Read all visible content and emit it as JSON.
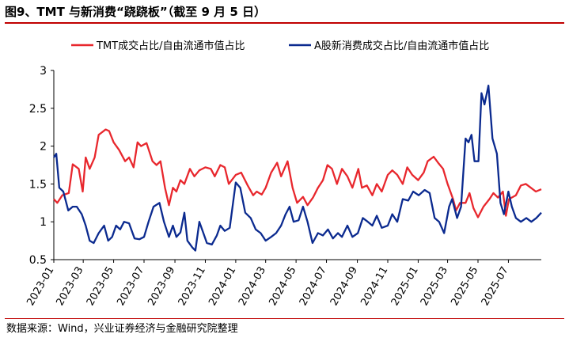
{
  "header": {
    "title": "图9、TMT 与新消费“跷跷板”（截至 9 月 5 日）"
  },
  "footer": {
    "source": "数据来源：Wind，兴业证券经济与金融研究院整理"
  },
  "colors": {
    "tmt": "#e8272d",
    "consumer": "#0b2a8f",
    "rule": "#c00000"
  },
  "chart_data": {
    "type": "line",
    "title": "",
    "xlabel": "",
    "ylabel": "",
    "ylim": [
      0.5,
      3
    ],
    "yticks": [
      "0.5",
      "1",
      "1.5",
      "2",
      "2.5",
      "3"
    ],
    "grid": false,
    "legend": "top",
    "xlim": [
      "2023-01-01",
      "2025-09-05"
    ],
    "xticks": [
      "2023-01",
      "2023-03",
      "2023-05",
      "2023-07",
      "2023-09",
      "2023-11",
      "2024-01",
      "2024-03",
      "2024-05",
      "2024-07",
      "2024-09",
      "2024-11",
      "2025-01",
      "2025-03",
      "2025-05",
      "2025-07"
    ],
    "series": [
      {
        "name": "TMT成交占比/自由流通市值占比",
        "color": "#e8272d",
        "points": [
          [
            "2023-01-01",
            1.3
          ],
          [
            "2023-01-08",
            1.25
          ],
          [
            "2023-01-18",
            1.35
          ],
          [
            "2023-01-31",
            1.38
          ],
          [
            "2023-02-08",
            1.76
          ],
          [
            "2023-02-20",
            1.7
          ],
          [
            "2023-02-28",
            1.4
          ],
          [
            "2023-03-06",
            1.85
          ],
          [
            "2023-03-14",
            1.7
          ],
          [
            "2023-03-24",
            1.85
          ],
          [
            "2023-04-01",
            2.15
          ],
          [
            "2023-04-15",
            2.22
          ],
          [
            "2023-04-22",
            2.2
          ],
          [
            "2023-05-01",
            2.05
          ],
          [
            "2023-05-12",
            1.95
          ],
          [
            "2023-05-24",
            1.8
          ],
          [
            "2023-06-01",
            1.85
          ],
          [
            "2023-06-10",
            1.72
          ],
          [
            "2023-06-18",
            2.05
          ],
          [
            "2023-06-25",
            2.0
          ],
          [
            "2023-07-06",
            2.04
          ],
          [
            "2023-07-18",
            1.8
          ],
          [
            "2023-07-26",
            1.75
          ],
          [
            "2023-08-03",
            1.8
          ],
          [
            "2023-08-12",
            1.45
          ],
          [
            "2023-08-20",
            1.22
          ],
          [
            "2023-08-28",
            1.45
          ],
          [
            "2023-09-04",
            1.4
          ],
          [
            "2023-09-12",
            1.55
          ],
          [
            "2023-09-20",
            1.5
          ],
          [
            "2023-10-01",
            1.7
          ],
          [
            "2023-10-10",
            1.6
          ],
          [
            "2023-10-20",
            1.68
          ],
          [
            "2023-11-01",
            1.72
          ],
          [
            "2023-11-12",
            1.7
          ],
          [
            "2023-11-20",
            1.6
          ],
          [
            "2023-12-01",
            1.75
          ],
          [
            "2023-12-10",
            1.72
          ],
          [
            "2023-12-18",
            1.5
          ],
          [
            "2024-01-01",
            1.62
          ],
          [
            "2024-01-12",
            1.65
          ],
          [
            "2024-01-25",
            1.48
          ],
          [
            "2024-02-05",
            1.35
          ],
          [
            "2024-02-12",
            1.4
          ],
          [
            "2024-02-22",
            1.36
          ],
          [
            "2024-03-01",
            1.45
          ],
          [
            "2024-03-12",
            1.65
          ],
          [
            "2024-03-24",
            1.78
          ],
          [
            "2024-04-01",
            1.6
          ],
          [
            "2024-04-14",
            1.8
          ],
          [
            "2024-04-24",
            1.45
          ],
          [
            "2024-05-03",
            1.25
          ],
          [
            "2024-05-15",
            1.33
          ],
          [
            "2024-05-24",
            1.22
          ],
          [
            "2024-06-04",
            1.32
          ],
          [
            "2024-06-14",
            1.45
          ],
          [
            "2024-06-24",
            1.55
          ],
          [
            "2024-07-03",
            1.75
          ],
          [
            "2024-07-12",
            1.7
          ],
          [
            "2024-07-22",
            1.5
          ],
          [
            "2024-08-01",
            1.7
          ],
          [
            "2024-08-12",
            1.6
          ],
          [
            "2024-08-22",
            1.45
          ],
          [
            "2024-09-03",
            1.7
          ],
          [
            "2024-09-10",
            1.45
          ],
          [
            "2024-09-20",
            1.48
          ],
          [
            "2024-10-01",
            1.35
          ],
          [
            "2024-10-10",
            1.5
          ],
          [
            "2024-10-20",
            1.4
          ],
          [
            "2024-11-01",
            1.62
          ],
          [
            "2024-11-10",
            1.68
          ],
          [
            "2024-11-20",
            1.62
          ],
          [
            "2024-12-01",
            1.5
          ],
          [
            "2024-12-10",
            1.72
          ],
          [
            "2024-12-20",
            1.62
          ],
          [
            "2025-01-01",
            1.55
          ],
          [
            "2025-01-12",
            1.65
          ],
          [
            "2025-01-20",
            1.8
          ],
          [
            "2025-02-01",
            1.86
          ],
          [
            "2025-02-10",
            1.78
          ],
          [
            "2025-02-20",
            1.7
          ],
          [
            "2025-03-01",
            1.5
          ],
          [
            "2025-03-12",
            1.3
          ],
          [
            "2025-03-18",
            1.15
          ],
          [
            "2025-03-26",
            1.25
          ],
          [
            "2025-04-06",
            1.25
          ],
          [
            "2025-04-14",
            1.38
          ],
          [
            "2025-04-22",
            1.18
          ],
          [
            "2025-05-01",
            1.06
          ],
          [
            "2025-05-12",
            1.2
          ],
          [
            "2025-05-24",
            1.3
          ],
          [
            "2025-06-01",
            1.38
          ],
          [
            "2025-06-10",
            1.32
          ],
          [
            "2025-06-20",
            1.4
          ],
          [
            "2025-06-26",
            1.08
          ],
          [
            "2025-07-02",
            1.3
          ],
          [
            "2025-07-16",
            1.35
          ],
          [
            "2025-07-26",
            1.48
          ],
          [
            "2025-08-05",
            1.5
          ],
          [
            "2025-08-15",
            1.45
          ],
          [
            "2025-08-25",
            1.4
          ],
          [
            "2025-09-05",
            1.43
          ]
        ]
      },
      {
        "name": "A股新消费成交占比/自由流通市值占比",
        "color": "#0b2a8f",
        "points": [
          [
            "2023-01-01",
            1.85
          ],
          [
            "2023-01-06",
            1.9
          ],
          [
            "2023-01-12",
            1.45
          ],
          [
            "2023-01-20",
            1.4
          ],
          [
            "2023-01-30",
            1.15
          ],
          [
            "2023-02-08",
            1.2
          ],
          [
            "2023-02-16",
            1.2
          ],
          [
            "2023-02-26",
            1.1
          ],
          [
            "2023-03-06",
            0.95
          ],
          [
            "2023-03-14",
            0.75
          ],
          [
            "2023-03-22",
            0.72
          ],
          [
            "2023-04-01",
            0.85
          ],
          [
            "2023-04-12",
            0.95
          ],
          [
            "2023-04-20",
            0.75
          ],
          [
            "2023-04-28",
            0.8
          ],
          [
            "2023-05-06",
            0.95
          ],
          [
            "2023-05-14",
            0.9
          ],
          [
            "2023-05-22",
            1.0
          ],
          [
            "2023-06-01",
            0.98
          ],
          [
            "2023-06-12",
            0.78
          ],
          [
            "2023-06-22",
            0.77
          ],
          [
            "2023-07-01",
            0.8
          ],
          [
            "2023-07-10",
            1.0
          ],
          [
            "2023-07-20",
            1.2
          ],
          [
            "2023-08-01",
            1.25
          ],
          [
            "2023-08-10",
            1.0
          ],
          [
            "2023-08-20",
            0.8
          ],
          [
            "2023-08-28",
            0.95
          ],
          [
            "2023-09-04",
            0.8
          ],
          [
            "2023-09-12",
            0.86
          ],
          [
            "2023-09-20",
            1.12
          ],
          [
            "2023-09-26",
            0.75
          ],
          [
            "2023-10-06",
            0.66
          ],
          [
            "2023-10-12",
            0.62
          ],
          [
            "2023-10-20",
            1.0
          ],
          [
            "2023-10-28",
            0.85
          ],
          [
            "2023-11-04",
            0.72
          ],
          [
            "2023-11-14",
            0.7
          ],
          [
            "2023-11-24",
            0.82
          ],
          [
            "2023-12-01",
            0.95
          ],
          [
            "2023-12-10",
            0.88
          ],
          [
            "2023-12-20",
            0.92
          ],
          [
            "2024-01-01",
            1.52
          ],
          [
            "2024-01-10",
            1.45
          ],
          [
            "2024-01-20",
            1.12
          ],
          [
            "2024-01-31",
            1.05
          ],
          [
            "2024-02-10",
            0.9
          ],
          [
            "2024-02-20",
            0.85
          ],
          [
            "2024-03-01",
            0.75
          ],
          [
            "2024-03-12",
            0.8
          ],
          [
            "2024-03-22",
            0.85
          ],
          [
            "2024-04-01",
            0.95
          ],
          [
            "2024-04-10",
            1.1
          ],
          [
            "2024-04-18",
            1.2
          ],
          [
            "2024-04-26",
            1.0
          ],
          [
            "2024-05-06",
            1.02
          ],
          [
            "2024-05-15",
            1.2
          ],
          [
            "2024-05-24",
            1.0
          ],
          [
            "2024-06-03",
            0.72
          ],
          [
            "2024-06-14",
            0.85
          ],
          [
            "2024-06-24",
            0.82
          ],
          [
            "2024-07-04",
            0.9
          ],
          [
            "2024-07-14",
            0.78
          ],
          [
            "2024-07-24",
            0.85
          ],
          [
            "2024-08-01",
            0.8
          ],
          [
            "2024-08-12",
            0.95
          ],
          [
            "2024-08-22",
            0.8
          ],
          [
            "2024-09-02",
            0.85
          ],
          [
            "2024-09-12",
            1.05
          ],
          [
            "2024-09-22",
            1.0
          ],
          [
            "2024-10-01",
            0.95
          ],
          [
            "2024-10-10",
            1.08
          ],
          [
            "2024-10-20",
            0.92
          ],
          [
            "2024-11-01",
            0.95
          ],
          [
            "2024-11-10",
            1.1
          ],
          [
            "2024-11-20",
            1.0
          ],
          [
            "2024-12-01",
            1.3
          ],
          [
            "2024-12-12",
            1.28
          ],
          [
            "2024-12-22",
            1.4
          ],
          [
            "2025-01-02",
            1.35
          ],
          [
            "2025-01-14",
            1.42
          ],
          [
            "2025-01-24",
            1.38
          ],
          [
            "2025-02-03",
            1.05
          ],
          [
            "2025-02-12",
            1.0
          ],
          [
            "2025-02-22",
            0.85
          ],
          [
            "2025-03-04",
            1.2
          ],
          [
            "2025-03-10",
            1.3
          ],
          [
            "2025-03-20",
            1.05
          ],
          [
            "2025-03-28",
            1.2
          ],
          [
            "2025-04-06",
            2.1
          ],
          [
            "2025-04-12",
            2.05
          ],
          [
            "2025-04-18",
            2.15
          ],
          [
            "2025-04-24",
            1.8
          ],
          [
            "2025-05-02",
            1.8
          ],
          [
            "2025-05-08",
            2.7
          ],
          [
            "2025-05-14",
            2.55
          ],
          [
            "2025-05-22",
            2.8
          ],
          [
            "2025-05-30",
            2.1
          ],
          [
            "2025-06-08",
            1.9
          ],
          [
            "2025-06-15",
            1.25
          ],
          [
            "2025-06-22",
            1.1
          ],
          [
            "2025-07-01",
            1.4
          ],
          [
            "2025-07-08",
            1.2
          ],
          [
            "2025-07-16",
            1.05
          ],
          [
            "2025-07-26",
            1.0
          ],
          [
            "2025-08-06",
            1.05
          ],
          [
            "2025-08-16",
            1.0
          ],
          [
            "2025-08-26",
            1.05
          ],
          [
            "2025-09-05",
            1.12
          ]
        ]
      }
    ]
  }
}
